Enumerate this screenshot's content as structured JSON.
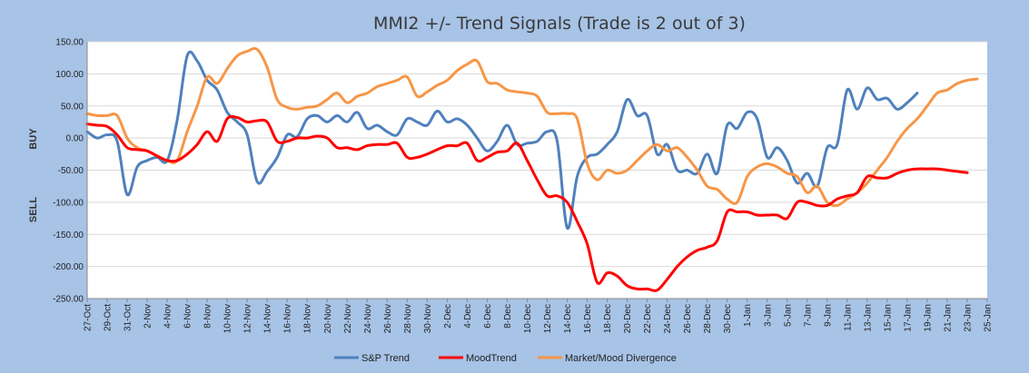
{
  "chart_data": {
    "type": "line",
    "title": "MMI2 +/- Trend Signals (Trade is 2 out of 3)",
    "ylabel_top": "BUY",
    "ylabel_bottom": "SELL",
    "ylim": [
      -250,
      150
    ],
    "yticks": [
      150,
      100,
      50,
      0,
      -50,
      -100,
      -150,
      -200,
      -250
    ],
    "ytick_labels": [
      "150.00",
      "100.00",
      "50.00",
      "0.00",
      "-50.00",
      "-100.00",
      "-150.00",
      "-200.00",
      "-250.00"
    ],
    "grid": true,
    "legend_position": "bottom",
    "x_tick_labels": [
      "27-Oct",
      "29-Oct",
      "31-Oct",
      "2-Nov",
      "4-Nov",
      "6-Nov",
      "8-Nov",
      "10-Nov",
      "12-Nov",
      "14-Nov",
      "16-Nov",
      "18-Nov",
      "20-Nov",
      "22-Nov",
      "24-Nov",
      "26-Nov",
      "28-Nov",
      "30-Nov",
      "2-Dec",
      "4-Dec",
      "6-Dec",
      "8-Dec",
      "10-Dec",
      "12-Dec",
      "14-Dec",
      "16-Dec",
      "18-Dec",
      "20-Dec",
      "22-Dec",
      "24-Dec",
      "26-Dec",
      "28-Dec",
      "30-Dec",
      "1-Jan",
      "3-Jan",
      "5-Jan",
      "7-Jan",
      "9-Jan",
      "11-Jan",
      "13-Jan",
      "15-Jan",
      "17-Jan",
      "19-Jan",
      "21-Jan",
      "23-Jan",
      "25-Jan"
    ],
    "x": [
      0,
      1,
      2,
      3,
      4,
      5,
      6,
      7,
      8,
      9,
      10,
      11,
      12,
      13,
      14,
      15,
      16,
      17,
      18,
      19,
      20,
      21,
      22,
      23,
      24,
      25,
      26,
      27,
      28,
      29,
      30,
      31,
      32,
      33,
      34,
      35,
      36,
      37,
      38,
      39,
      40,
      41,
      42,
      43,
      44,
      45,
      46,
      47,
      48,
      49,
      50,
      51,
      52,
      53,
      54,
      55,
      56,
      57,
      58,
      59,
      60,
      61,
      62,
      63,
      64,
      65,
      66,
      67,
      68,
      69,
      70,
      71,
      72,
      73,
      74,
      75,
      76,
      77,
      78,
      79,
      80,
      81,
      82,
      83,
      84,
      85,
      86,
      87,
      88,
      89,
      90
    ],
    "series": [
      {
        "name": "S&P Trend",
        "color": "#4f81bd",
        "values": [
          10,
          0,
          5,
          -5,
          -88,
          -45,
          -35,
          -30,
          -35,
          28,
          128,
          120,
          90,
          75,
          40,
          25,
          5,
          -68,
          -52,
          -30,
          5,
          2,
          30,
          35,
          25,
          35,
          25,
          40,
          15,
          20,
          10,
          5,
          30,
          25,
          20,
          42,
          25,
          30,
          20,
          0,
          -20,
          -5,
          20,
          -10,
          -8,
          -5,
          10,
          -5,
          -140,
          -60,
          -30,
          -25,
          -10,
          10,
          60,
          35,
          35,
          -25,
          -10,
          -50,
          -50,
          -55,
          -25,
          -55,
          20,
          15,
          40,
          30,
          -30,
          -15,
          -35,
          -70,
          -55,
          -75,
          -15,
          -10,
          75,
          45,
          78,
          60,
          62,
          45,
          55,
          70,
          null,
          null,
          null,
          null,
          null,
          null,
          null
        ]
      },
      {
        "name": "MoodTrend",
        "color": "#ff0000",
        "values": [
          22,
          20,
          18,
          5,
          -15,
          -18,
          -20,
          -28,
          -35,
          -35,
          -25,
          -10,
          10,
          -5,
          30,
          32,
          25,
          27,
          25,
          -5,
          -5,
          0,
          0,
          3,
          0,
          -15,
          -15,
          -18,
          -12,
          -10,
          -10,
          -8,
          -30,
          -30,
          -25,
          -18,
          -12,
          -12,
          -8,
          -35,
          -30,
          -22,
          -20,
          -8,
          -35,
          -65,
          -90,
          -90,
          -100,
          -130,
          -165,
          -225,
          -210,
          -215,
          -230,
          -235,
          -235,
          -237,
          -220,
          -200,
          -185,
          -175,
          -170,
          -160,
          -115,
          -115,
          -115,
          -120,
          -120,
          -120,
          -125,
          -100,
          -100,
          -105,
          -105,
          -95,
          -90,
          -85,
          -60,
          -62,
          -62,
          -55,
          -50,
          -48,
          -48,
          -48,
          -50,
          -52,
          -54,
          null,
          null
        ]
      },
      {
        "name": "Market/Mood Divergence",
        "color": "#f79646",
        "values": [
          38,
          35,
          35,
          35,
          0,
          -15,
          -20,
          -28,
          -35,
          -35,
          10,
          50,
          95,
          85,
          108,
          128,
          135,
          138,
          110,
          60,
          48,
          45,
          48,
          50,
          60,
          70,
          55,
          65,
          70,
          80,
          85,
          90,
          95,
          65,
          72,
          82,
          90,
          105,
          115,
          120,
          88,
          85,
          75,
          72,
          70,
          65,
          40,
          38,
          38,
          30,
          -40,
          -65,
          -50,
          -55,
          -50,
          -35,
          -20,
          -10,
          -20,
          -15,
          -30,
          -50,
          -75,
          -80,
          -95,
          -100,
          -60,
          -45,
          -40,
          -45,
          -55,
          -60,
          -85,
          -75,
          -100,
          -105,
          -95,
          -85,
          -70,
          -50,
          -30,
          -5,
          15,
          30,
          50,
          70,
          75,
          85,
          90,
          92,
          null
        ]
      }
    ]
  }
}
